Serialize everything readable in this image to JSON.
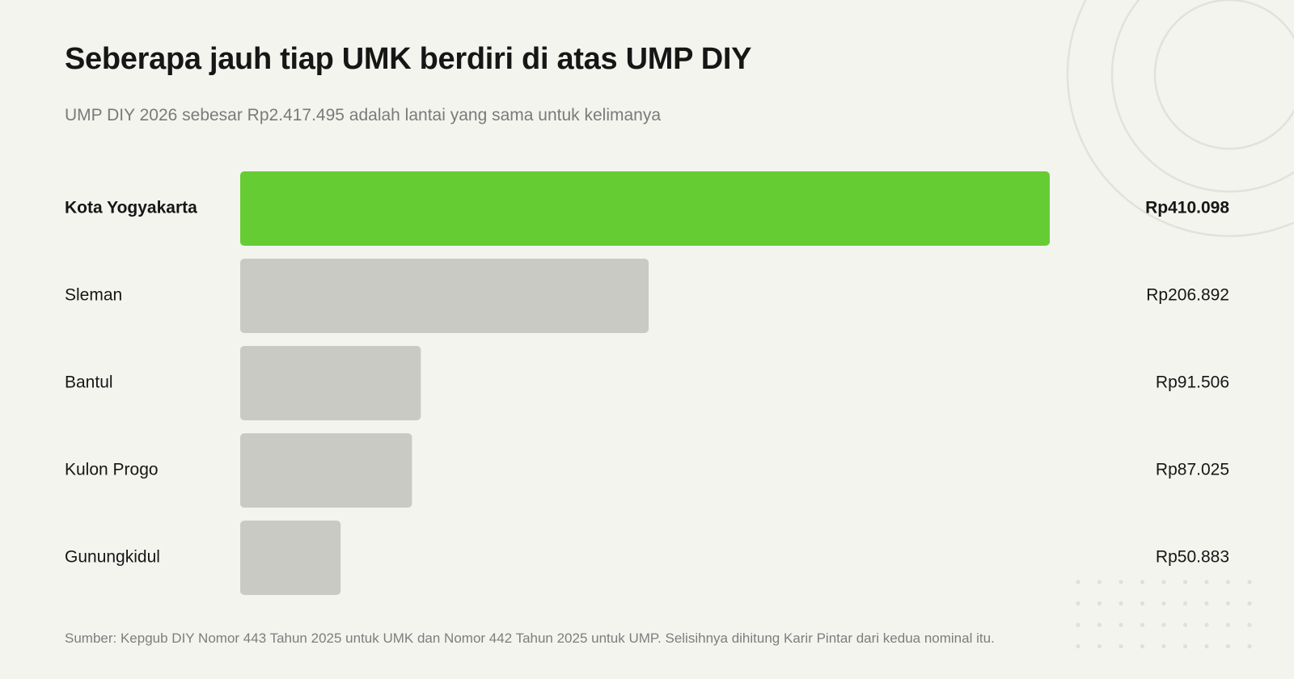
{
  "title": "Seberapa jauh tiap UMK berdiri di atas UMP DIY",
  "subtitle": "UMP DIY 2026 sebesar Rp2.417.495 adalah lantai yang sama untuk kelimanya",
  "source": "Sumber: Kepgub DIY Nomor 443 Tahun 2025 untuk UMK dan Nomor 442 Tahun 2025 untuk UMP. Selisihnya dihitung Karir Pintar dari kedua nominal itu.",
  "colors": {
    "highlight": "#66cc33",
    "bar": "#cacac5",
    "background": "#f4f4ef",
    "decoration": "#e2e2dd"
  },
  "chart_data": {
    "type": "bar",
    "orientation": "horizontal",
    "categories": [
      "Kota Yogyakarta",
      "Sleman",
      "Bantul",
      "Kulon Progo",
      "Gunungkidul"
    ],
    "values": [
      410098,
      206892,
      91506,
      87025,
      50883
    ],
    "value_labels": [
      "Rp410.098",
      "Rp206.892",
      "Rp91.506",
      "Rp87.025",
      "Rp50.883"
    ],
    "highlight_index": 0,
    "xlim": [
      0,
      410098
    ],
    "grid": false,
    "legend": "none"
  }
}
